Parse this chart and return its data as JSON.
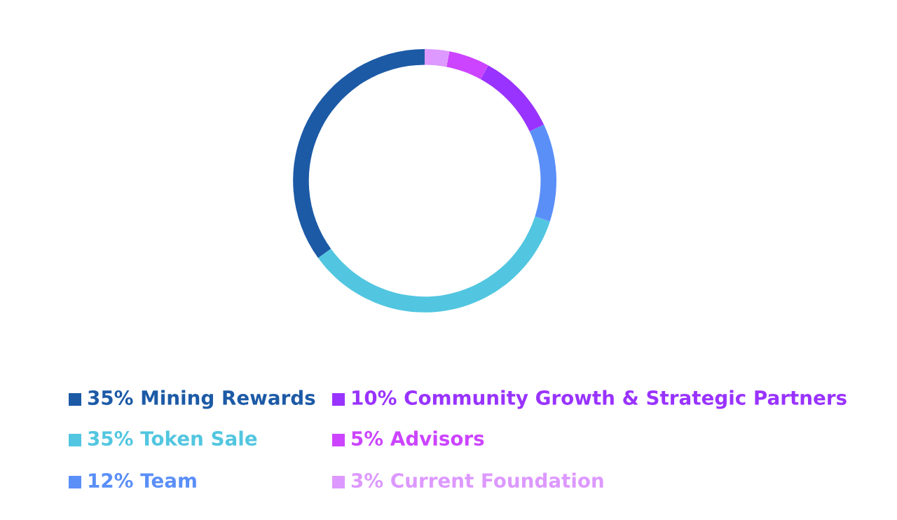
{
  "chart_data": {
    "type": "donut",
    "categories": [
      "Mining Rewards",
      "Token Sale",
      "Team",
      "Community Growth & Strategic Partners",
      "Advisors",
      "Current Foundation"
    ],
    "values": [
      35,
      35,
      12,
      10,
      5,
      3
    ],
    "value_labels": [
      "35%",
      "35%",
      "12%",
      "10%",
      "5%",
      "3%"
    ],
    "colors": [
      "#1c5aa6",
      "#52c6e0",
      "#5a8ff8",
      "#9933ff",
      "#cc44ff",
      "#dd99ff"
    ],
    "legend": "bottom"
  }
}
